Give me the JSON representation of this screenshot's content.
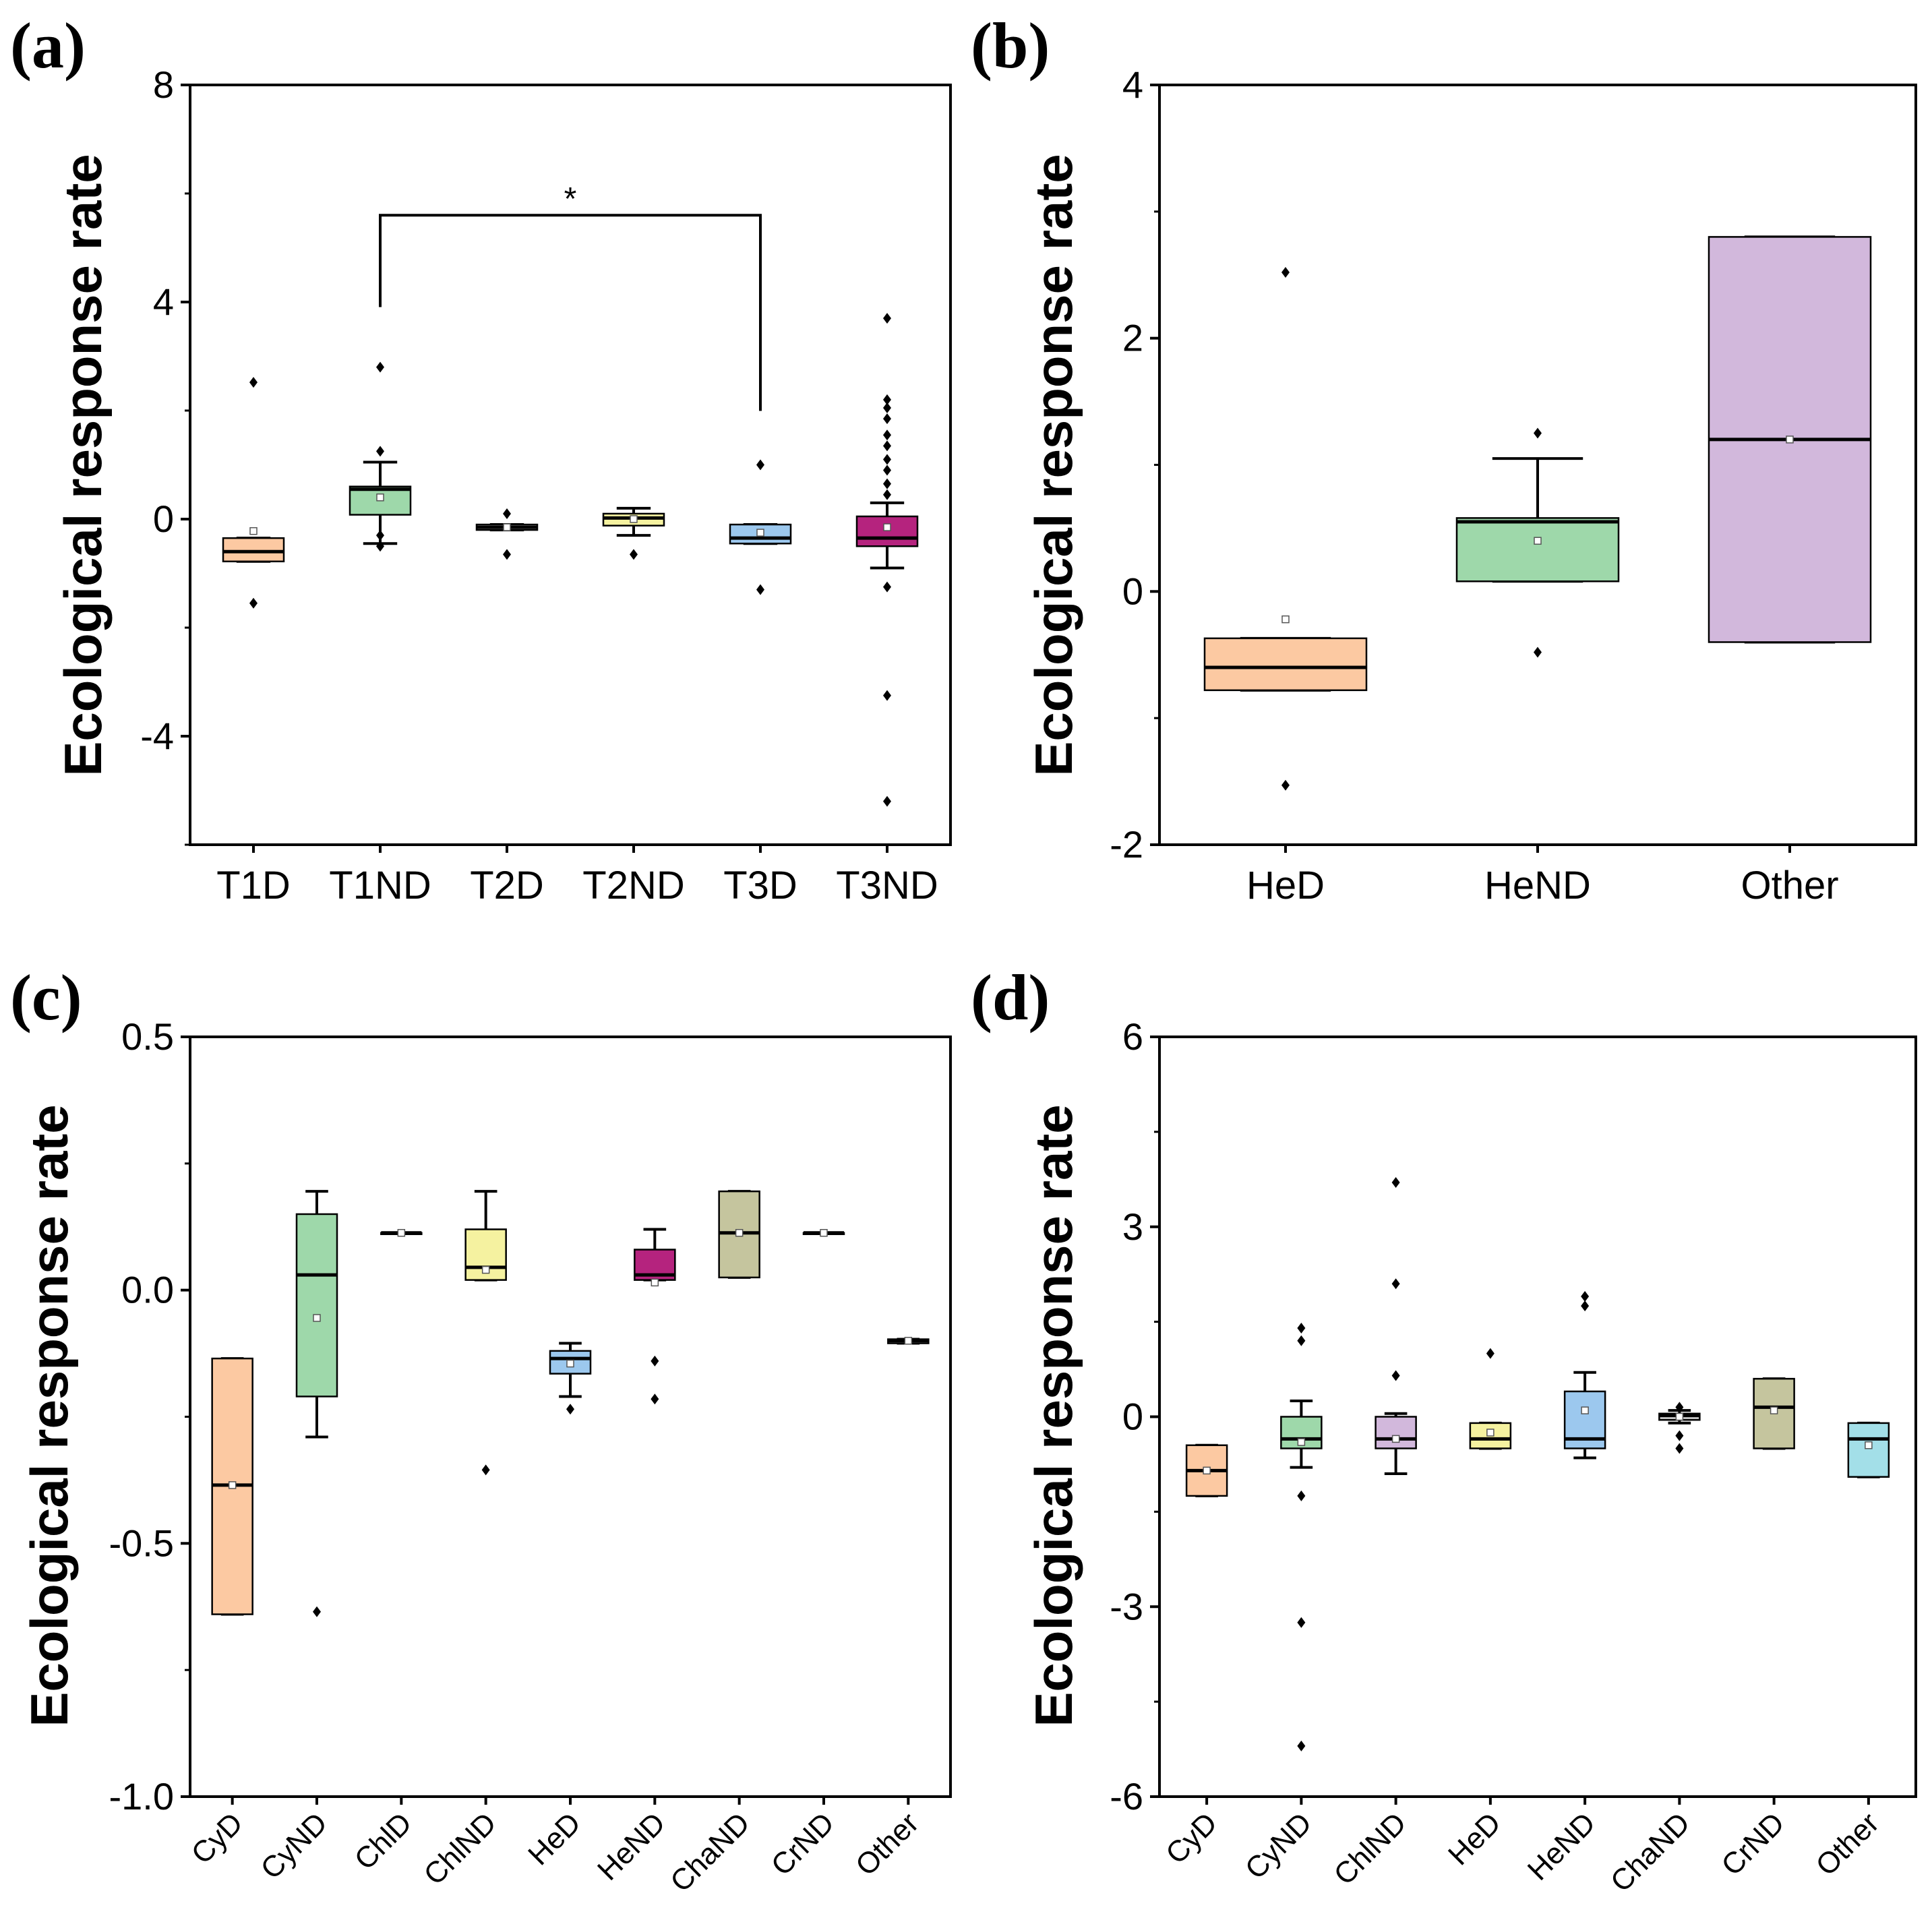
{
  "chart_data": [
    {
      "panel": "(a)",
      "type": "box",
      "ylabel": "Ecological response rate",
      "ylim": [
        -6,
        8
      ],
      "yticks": [
        8,
        4,
        0,
        -4
      ],
      "ytick_labels": [
        "8",
        "4",
        "0",
        "-4"
      ],
      "categories": [
        "T1D",
        "T1ND",
        "T2D",
        "T2ND",
        "T3D",
        "T3ND"
      ],
      "colors": [
        "#fcc9a2",
        "#9ed8aa",
        "#c8c8c8",
        "#f5f2a0",
        "#9cc8ee",
        "#b5237e"
      ],
      "boxes": [
        {
          "q1": -0.78,
          "median": -0.6,
          "q3": -0.35,
          "whisker_low": -0.78,
          "whisker_high": -0.35,
          "mean": -0.22,
          "outliers": [
            2.52,
            -1.55
          ]
        },
        {
          "q1": 0.08,
          "median": 0.55,
          "q3": 0.6,
          "whisker_low": -0.45,
          "whisker_high": 1.05,
          "mean": 0.4,
          "outliers": [
            2.8,
            1.25,
            -0.3,
            -0.5
          ]
        },
        {
          "q1": -0.2,
          "median": -0.15,
          "q3": -0.1,
          "whisker_low": -0.2,
          "whisker_high": -0.1,
          "mean": -0.15,
          "outliers": [
            0.1,
            -0.65
          ]
        },
        {
          "q1": -0.12,
          "median": 0.02,
          "q3": 0.1,
          "whisker_low": -0.3,
          "whisker_high": 0.2,
          "mean": 0.0,
          "outliers": [
            -0.65
          ]
        },
        {
          "q1": -0.45,
          "median": -0.35,
          "q3": -0.1,
          "whisker_low": -0.45,
          "whisker_high": -0.1,
          "mean": -0.25,
          "outliers": [
            1.0,
            -1.3
          ]
        },
        {
          "q1": -0.5,
          "median": -0.35,
          "q3": 0.05,
          "whisker_low": -0.9,
          "whisker_high": 0.3,
          "mean": -0.15,
          "outliers": [
            3.7,
            2.2,
            2.05,
            1.85,
            1.55,
            1.35,
            1.1,
            0.9,
            0.65,
            0.45,
            -1.25,
            -3.25,
            -5.2
          ]
        }
      ],
      "significance": {
        "from": "T1ND",
        "to": "T3D",
        "label": "*",
        "y": 5.6
      }
    },
    {
      "panel": "(b)",
      "type": "box",
      "ylabel": "Ecological response rate",
      "ylim": [
        -2,
        4
      ],
      "yticks": [
        4,
        2,
        0,
        -2
      ],
      "ytick_labels": [
        "4",
        "2",
        "0",
        "-2"
      ],
      "categories": [
        "HeD",
        "HeND",
        "Other"
      ],
      "colors": [
        "#fcc9a2",
        "#9ed8aa",
        "#d2b8dc"
      ],
      "boxes": [
        {
          "q1": -0.78,
          "median": -0.6,
          "q3": -0.37,
          "whisker_low": -0.78,
          "whisker_high": -0.37,
          "mean": -0.22,
          "outliers": [
            2.52,
            -1.53
          ]
        },
        {
          "q1": 0.08,
          "median": 0.55,
          "q3": 0.58,
          "whisker_low": 0.08,
          "whisker_high": 1.05,
          "mean": 0.4,
          "outliers": [
            1.25,
            -0.48
          ]
        },
        {
          "q1": -0.4,
          "median": 1.2,
          "q3": 2.8,
          "whisker_low": -0.4,
          "whisker_high": 2.8,
          "mean": 1.2,
          "outliers": []
        }
      ]
    },
    {
      "panel": "(c)",
      "type": "box",
      "ylabel": "Ecological response rate",
      "ylim": [
        -1.0,
        0.5
      ],
      "yticks": [
        0.5,
        0.0,
        -0.5,
        -1.0
      ],
      "ytick_labels": [
        "0.5",
        "0.0",
        "-0.5",
        "-1.0"
      ],
      "categories": [
        "CyD",
        "CyND",
        "ChlD",
        "ChlND",
        "HeD",
        "HeND",
        "ChaND",
        "CrND",
        "Other"
      ],
      "colors": [
        "#fcc9a2",
        "#9ed8aa",
        "#c8c8c8",
        "#f5f2a0",
        "#9cc8ee",
        "#b5237e",
        "#c5c59e",
        "#c8c8c8",
        "#c8c8c8"
      ],
      "boxes": [
        {
          "q1": -0.64,
          "median": -0.385,
          "q3": -0.135,
          "whisker_low": -0.64,
          "whisker_high": -0.135,
          "mean": -0.385,
          "outliers": []
        },
        {
          "q1": -0.21,
          "median": 0.03,
          "q3": 0.15,
          "whisker_low": -0.29,
          "whisker_high": 0.195,
          "mean": -0.055,
          "outliers": [
            -0.635
          ]
        },
        {
          "q1": 0.113,
          "median": 0.113,
          "q3": 0.113,
          "whisker_low": 0.113,
          "whisker_high": 0.113,
          "mean": 0.113,
          "outliers": []
        },
        {
          "q1": 0.02,
          "median": 0.045,
          "q3": 0.12,
          "whisker_low": 0.02,
          "whisker_high": 0.195,
          "mean": 0.04,
          "outliers": [
            -0.355
          ]
        },
        {
          "q1": -0.165,
          "median": -0.135,
          "q3": -0.12,
          "whisker_low": -0.21,
          "whisker_high": -0.105,
          "mean": -0.145,
          "outliers": [
            -0.235
          ]
        },
        {
          "q1": 0.02,
          "median": 0.03,
          "q3": 0.08,
          "whisker_low": 0.02,
          "whisker_high": 0.12,
          "mean": 0.015,
          "outliers": [
            -0.14,
            -0.215
          ]
        },
        {
          "q1": 0.025,
          "median": 0.113,
          "q3": 0.195,
          "whisker_low": 0.025,
          "whisker_high": 0.195,
          "mean": 0.113,
          "outliers": []
        },
        {
          "q1": 0.113,
          "median": 0.113,
          "q3": 0.113,
          "whisker_low": 0.113,
          "whisker_high": 0.113,
          "mean": 0.113,
          "outliers": []
        },
        {
          "q1": -0.105,
          "median": -0.1,
          "q3": -0.097,
          "whisker_low": -0.105,
          "whisker_high": -0.097,
          "mean": -0.1,
          "outliers": []
        }
      ]
    },
    {
      "panel": "(d)",
      "type": "box",
      "ylabel": "Ecological response rate",
      "ylim": [
        -6,
        6
      ],
      "yticks": [
        6,
        3,
        0,
        -3,
        -6
      ],
      "ytick_labels": [
        "6",
        "3",
        "0",
        "-3",
        "-6"
      ],
      "categories": [
        "CyD",
        "CyND",
        "ChlND",
        "HeD",
        "HeND",
        "ChaND",
        "CrND",
        "Other"
      ],
      "colors": [
        "#fcc9a2",
        "#9ed8aa",
        "#d2b8dc",
        "#f5f2a0",
        "#9cc8ee",
        "#c8c8c8",
        "#c5c59e",
        "#a3dfe8"
      ],
      "boxes": [
        {
          "q1": -1.25,
          "median": -0.85,
          "q3": -0.45,
          "whisker_low": -1.25,
          "whisker_high": -0.45,
          "mean": -0.85,
          "outliers": []
        },
        {
          "q1": -0.5,
          "median": -0.35,
          "q3": 0.0,
          "whisker_low": -0.8,
          "whisker_high": 0.25,
          "mean": -0.4,
          "outliers": [
            1.4,
            1.2,
            -1.25,
            -3.25,
            -5.2
          ]
        },
        {
          "q1": -0.5,
          "median": -0.35,
          "q3": 0.0,
          "whisker_low": -0.9,
          "whisker_high": 0.05,
          "mean": -0.35,
          "outliers": [
            3.7,
            2.1,
            0.65
          ]
        },
        {
          "q1": -0.5,
          "median": -0.35,
          "q3": -0.1,
          "whisker_low": -0.5,
          "whisker_high": -0.1,
          "mean": -0.25,
          "outliers": [
            1.0
          ]
        },
        {
          "q1": -0.5,
          "median": -0.35,
          "q3": 0.4,
          "whisker_low": -0.65,
          "whisker_high": 0.7,
          "mean": 0.1,
          "outliers": [
            1.9,
            1.75
          ]
        },
        {
          "q1": -0.05,
          "median": 0.02,
          "q3": 0.05,
          "whisker_low": -0.1,
          "whisker_high": 0.1,
          "mean": 0.0,
          "outliers": [
            0.15,
            -0.3,
            -0.5
          ]
        },
        {
          "q1": -0.5,
          "median": 0.15,
          "q3": 0.6,
          "whisker_low": -0.5,
          "whisker_high": 0.6,
          "mean": 0.1,
          "outliers": []
        },
        {
          "q1": -0.95,
          "median": -0.35,
          "q3": -0.1,
          "whisker_low": -0.95,
          "whisker_high": -0.1,
          "mean": -0.45,
          "outliers": []
        }
      ]
    }
  ]
}
